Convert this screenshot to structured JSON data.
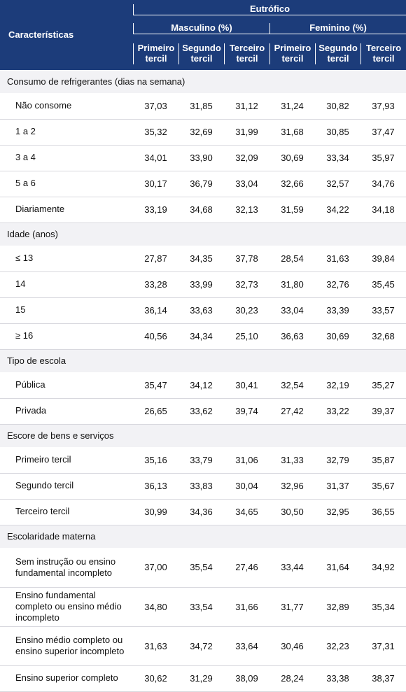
{
  "header": {
    "characteristics": "Características",
    "group_top": "Eutrófico",
    "male": "Masculino (%)",
    "female": "Feminino (%)",
    "terciles": [
      "Primeiro tercil",
      "Segundo tercil",
      "Terceiro tercil"
    ]
  },
  "colors": {
    "header_bg": "#1c3c7a",
    "header_text": "#ffffff",
    "section_bg": "#f2f2f5",
    "row_border": "#d8d8de",
    "text": "#111111"
  },
  "sections": [
    {
      "title": "Consumo de refrigerantes (dias na semana)",
      "rows": [
        {
          "label": "Não consome",
          "m": [
            "37,03",
            "31,85",
            "31,12"
          ],
          "f": [
            "31,24",
            "30,82",
            "37,93"
          ]
        },
        {
          "label": "1 a 2",
          "m": [
            "35,32",
            "32,69",
            "31,99"
          ],
          "f": [
            "31,68",
            "30,85",
            "37,47"
          ]
        },
        {
          "label": "3 a 4",
          "m": [
            "34,01",
            "33,90",
            "32,09"
          ],
          "f": [
            "30,69",
            "33,34",
            "35,97"
          ]
        },
        {
          "label": "5 a 6",
          "m": [
            "30,17",
            "36,79",
            "33,04"
          ],
          "f": [
            "32,66",
            "32,57",
            "34,76"
          ]
        },
        {
          "label": "Diariamente",
          "m": [
            "33,19",
            "34,68",
            "32,13"
          ],
          "f": [
            "31,59",
            "34,22",
            "34,18"
          ]
        }
      ]
    },
    {
      "title": "Idade (anos)",
      "rows": [
        {
          "label": "≤ 13",
          "m": [
            "27,87",
            "34,35",
            "37,78"
          ],
          "f": [
            "28,54",
            "31,63",
            "39,84"
          ]
        },
        {
          "label": "14",
          "m": [
            "33,28",
            "33,99",
            "32,73"
          ],
          "f": [
            "31,80",
            "32,76",
            "35,45"
          ]
        },
        {
          "label": "15",
          "m": [
            "36,14",
            "33,63",
            "30,23"
          ],
          "f": [
            "33,04",
            "33,39",
            "33,57"
          ]
        },
        {
          "label": "≥ 16",
          "m": [
            "40,56",
            "34,34",
            "25,10"
          ],
          "f": [
            "36,63",
            "30,69",
            "32,68"
          ]
        }
      ]
    },
    {
      "title": "Tipo de escola",
      "rows": [
        {
          "label": "Pública",
          "m": [
            "35,47",
            "34,12",
            "30,41"
          ],
          "f": [
            "32,54",
            "32,19",
            "35,27"
          ]
        },
        {
          "label": "Privada",
          "m": [
            "26,65",
            "33,62",
            "39,74"
          ],
          "f": [
            "27,42",
            "33,22",
            "39,37"
          ]
        }
      ]
    },
    {
      "title": "Escore de bens e serviços",
      "rows": [
        {
          "label": "Primeiro tercil",
          "m": [
            "35,16",
            "33,79",
            "31,06"
          ],
          "f": [
            "31,33",
            "32,79",
            "35,87"
          ]
        },
        {
          "label": "Segundo tercil",
          "m": [
            "36,13",
            "33,83",
            "30,04"
          ],
          "f": [
            "32,96",
            "31,37",
            "35,67"
          ]
        },
        {
          "label": "Terceiro tercil",
          "m": [
            "30,99",
            "34,36",
            "34,65"
          ],
          "f": [
            "30,50",
            "32,95",
            "36,55"
          ]
        }
      ]
    },
    {
      "title": "Escolaridade materna",
      "rows": [
        {
          "label": "Sem instrução ou ensino fundamental incompleto",
          "tall": true,
          "m": [
            "37,00",
            "35,54",
            "27,46"
          ],
          "f": [
            "33,44",
            "31,64",
            "34,92"
          ]
        },
        {
          "label": "Ensino fundamental completo ou ensino médio incompleto",
          "tall": true,
          "m": [
            "34,80",
            "33,54",
            "31,66"
          ],
          "f": [
            "31,77",
            "32,89",
            "35,34"
          ]
        },
        {
          "label": "Ensino médio completo ou ensino superior incompleto",
          "tall": true,
          "m": [
            "31,63",
            "34,72",
            "33,64"
          ],
          "f": [
            "30,46",
            "32,23",
            "37,31"
          ]
        },
        {
          "label": "Ensino superior completo",
          "tall": false,
          "m": [
            "30,62",
            "31,29",
            "38,09"
          ],
          "f": [
            "28,24",
            "33,38",
            "38,37"
          ]
        }
      ]
    }
  ]
}
